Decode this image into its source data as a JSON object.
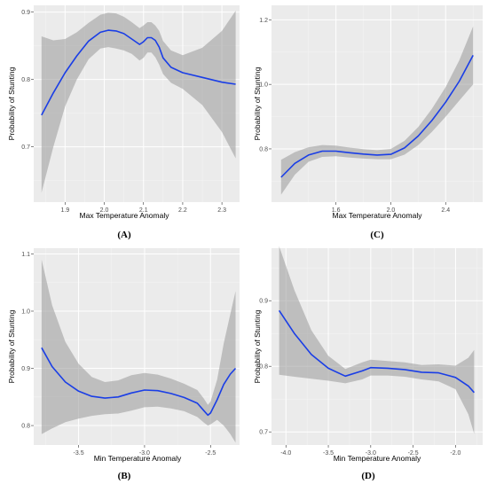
{
  "figure": {
    "panels": [
      "A",
      "B",
      "C",
      "D"
    ]
  },
  "style": {
    "panel_bg": "#ebebeb",
    "grid_major": "#ffffff",
    "grid_minor": "#f5f5f5",
    "line_color": "#1a3ee6",
    "band_color": "#999999"
  },
  "chart_data": [
    {
      "panel": "A",
      "panel_label": "(A)",
      "type": "line",
      "xlabel": "Max Temperature Anomaly",
      "ylabel": "Probability of Stunting",
      "xlim": [
        1.82,
        2.345
      ],
      "ylim": [
        0.618,
        0.91
      ],
      "xticks": [
        1.9,
        2.0,
        2.1,
        2.2,
        2.3
      ],
      "xtick_labels": [
        "1.9",
        "2.0",
        "2.1",
        "2.2",
        "2.3"
      ],
      "yticks": [
        0.7,
        0.8,
        0.9
      ],
      "ytick_labels": [
        "0.7",
        "0.8",
        "0.9"
      ],
      "x": [
        1.84,
        1.87,
        1.9,
        1.93,
        1.96,
        1.99,
        2.01,
        2.03,
        2.05,
        2.07,
        2.09,
        2.1,
        2.11,
        2.12,
        2.13,
        2.14,
        2.15,
        2.17,
        2.2,
        2.25,
        2.3,
        2.335
      ],
      "y": [
        0.747,
        0.78,
        0.81,
        0.835,
        0.857,
        0.87,
        0.873,
        0.872,
        0.868,
        0.86,
        0.852,
        0.856,
        0.862,
        0.862,
        0.858,
        0.848,
        0.832,
        0.818,
        0.81,
        0.803,
        0.796,
        0.793
      ],
      "lower": [
        0.632,
        0.7,
        0.76,
        0.8,
        0.83,
        0.846,
        0.848,
        0.846,
        0.843,
        0.838,
        0.828,
        0.832,
        0.84,
        0.84,
        0.833,
        0.822,
        0.808,
        0.795,
        0.786,
        0.762,
        0.722,
        0.683
      ],
      "upper": [
        0.864,
        0.858,
        0.86,
        0.87,
        0.884,
        0.896,
        0.899,
        0.898,
        0.893,
        0.885,
        0.876,
        0.88,
        0.885,
        0.885,
        0.88,
        0.872,
        0.857,
        0.843,
        0.836,
        0.847,
        0.872,
        0.902
      ]
    },
    {
      "panel": "C",
      "panel_label": "(C)",
      "type": "line",
      "xlabel": "Max Temperature Anomaly",
      "ylabel": "Probability of Stunting",
      "xlim": [
        1.13,
        2.67
      ],
      "ylim": [
        0.635,
        1.245
      ],
      "xticks": [
        1.6,
        2.0,
        2.4
      ],
      "xtick_labels": [
        "1.6",
        "2.0",
        "2.4"
      ],
      "yticks": [
        0.8,
        1.0,
        1.2
      ],
      "ytick_labels": [
        "0.8",
        "1.0",
        "1.2"
      ],
      "x": [
        1.2,
        1.3,
        1.4,
        1.5,
        1.6,
        1.7,
        1.8,
        1.9,
        2.0,
        2.1,
        2.2,
        2.3,
        2.4,
        2.5,
        2.6
      ],
      "y": [
        0.712,
        0.755,
        0.781,
        0.793,
        0.793,
        0.788,
        0.784,
        0.781,
        0.783,
        0.803,
        0.84,
        0.888,
        0.945,
        1.01,
        1.09
      ],
      "lower": [
        0.658,
        0.72,
        0.76,
        0.775,
        0.777,
        0.773,
        0.77,
        0.768,
        0.768,
        0.782,
        0.812,
        0.853,
        0.9,
        0.95,
        1.0
      ],
      "upper": [
        0.766,
        0.79,
        0.805,
        0.812,
        0.81,
        0.804,
        0.799,
        0.796,
        0.8,
        0.825,
        0.868,
        0.924,
        0.992,
        1.075,
        1.18
      ]
    },
    {
      "panel": "B",
      "panel_label": "(B)",
      "type": "line",
      "xlabel": "Min Temperature Anomaly",
      "ylabel": "Probability of Stunting",
      "xlim": [
        -3.84,
        -2.28
      ],
      "ylim": [
        0.766,
        1.11
      ],
      "xticks": [
        -3.5,
        -3.0,
        -2.5
      ],
      "xtick_labels": [
        "-3.5",
        "-3.0",
        "-2.5"
      ],
      "yticks": [
        0.8,
        0.9,
        1.0,
        1.1
      ],
      "ytick_labels": [
        "0.8",
        "0.9",
        "1.0",
        "1.1"
      ],
      "x": [
        -3.78,
        -3.7,
        -3.6,
        -3.5,
        -3.4,
        -3.3,
        -3.2,
        -3.1,
        -3.0,
        -2.9,
        -2.8,
        -2.7,
        -2.6,
        -2.55,
        -2.52,
        -2.5,
        -2.45,
        -2.4,
        -2.35,
        -2.31
      ],
      "y": [
        0.936,
        0.903,
        0.876,
        0.86,
        0.851,
        0.848,
        0.85,
        0.857,
        0.862,
        0.861,
        0.856,
        0.849,
        0.839,
        0.826,
        0.818,
        0.822,
        0.845,
        0.872,
        0.89,
        0.9
      ],
      "lower": [
        0.785,
        0.795,
        0.806,
        0.812,
        0.817,
        0.82,
        0.821,
        0.826,
        0.832,
        0.833,
        0.83,
        0.825,
        0.815,
        0.805,
        0.8,
        0.802,
        0.81,
        0.8,
        0.785,
        0.77
      ],
      "upper": [
        1.09,
        1.01,
        0.946,
        0.908,
        0.885,
        0.876,
        0.879,
        0.888,
        0.892,
        0.889,
        0.882,
        0.873,
        0.862,
        0.847,
        0.836,
        0.842,
        0.88,
        0.944,
        0.995,
        1.035
      ]
    },
    {
      "panel": "D",
      "panel_label": "(D)",
      "type": "line",
      "xlabel": "Min Temperature Anomaly",
      "ylabel": "Probability of Stunting",
      "xlim": [
        -4.17,
        -1.68
      ],
      "ylim": [
        0.68,
        0.98
      ],
      "xticks": [
        -4.0,
        -3.5,
        -3.0,
        -2.5,
        -2.0
      ],
      "xtick_labels": [
        "-4.0",
        "-3.5",
        "-3.0",
        "-2.5",
        "-2.0"
      ],
      "yticks": [
        0.7,
        0.8,
        0.9
      ],
      "ytick_labels": [
        "0.7",
        "0.8",
        "0.9"
      ],
      "x": [
        -4.08,
        -3.9,
        -3.7,
        -3.5,
        -3.3,
        -3.1,
        -3.0,
        -2.8,
        -2.6,
        -2.4,
        -2.2,
        -2.0,
        -1.85,
        -1.78
      ],
      "y": [
        0.885,
        0.85,
        0.818,
        0.797,
        0.785,
        0.793,
        0.798,
        0.797,
        0.795,
        0.791,
        0.79,
        0.783,
        0.77,
        0.76
      ],
      "lower": [
        0.787,
        0.784,
        0.781,
        0.778,
        0.774,
        0.78,
        0.786,
        0.786,
        0.784,
        0.78,
        0.777,
        0.765,
        0.727,
        0.697
      ],
      "upper": [
        0.983,
        0.916,
        0.855,
        0.816,
        0.796,
        0.806,
        0.81,
        0.808,
        0.806,
        0.802,
        0.803,
        0.801,
        0.813,
        0.825
      ]
    }
  ]
}
